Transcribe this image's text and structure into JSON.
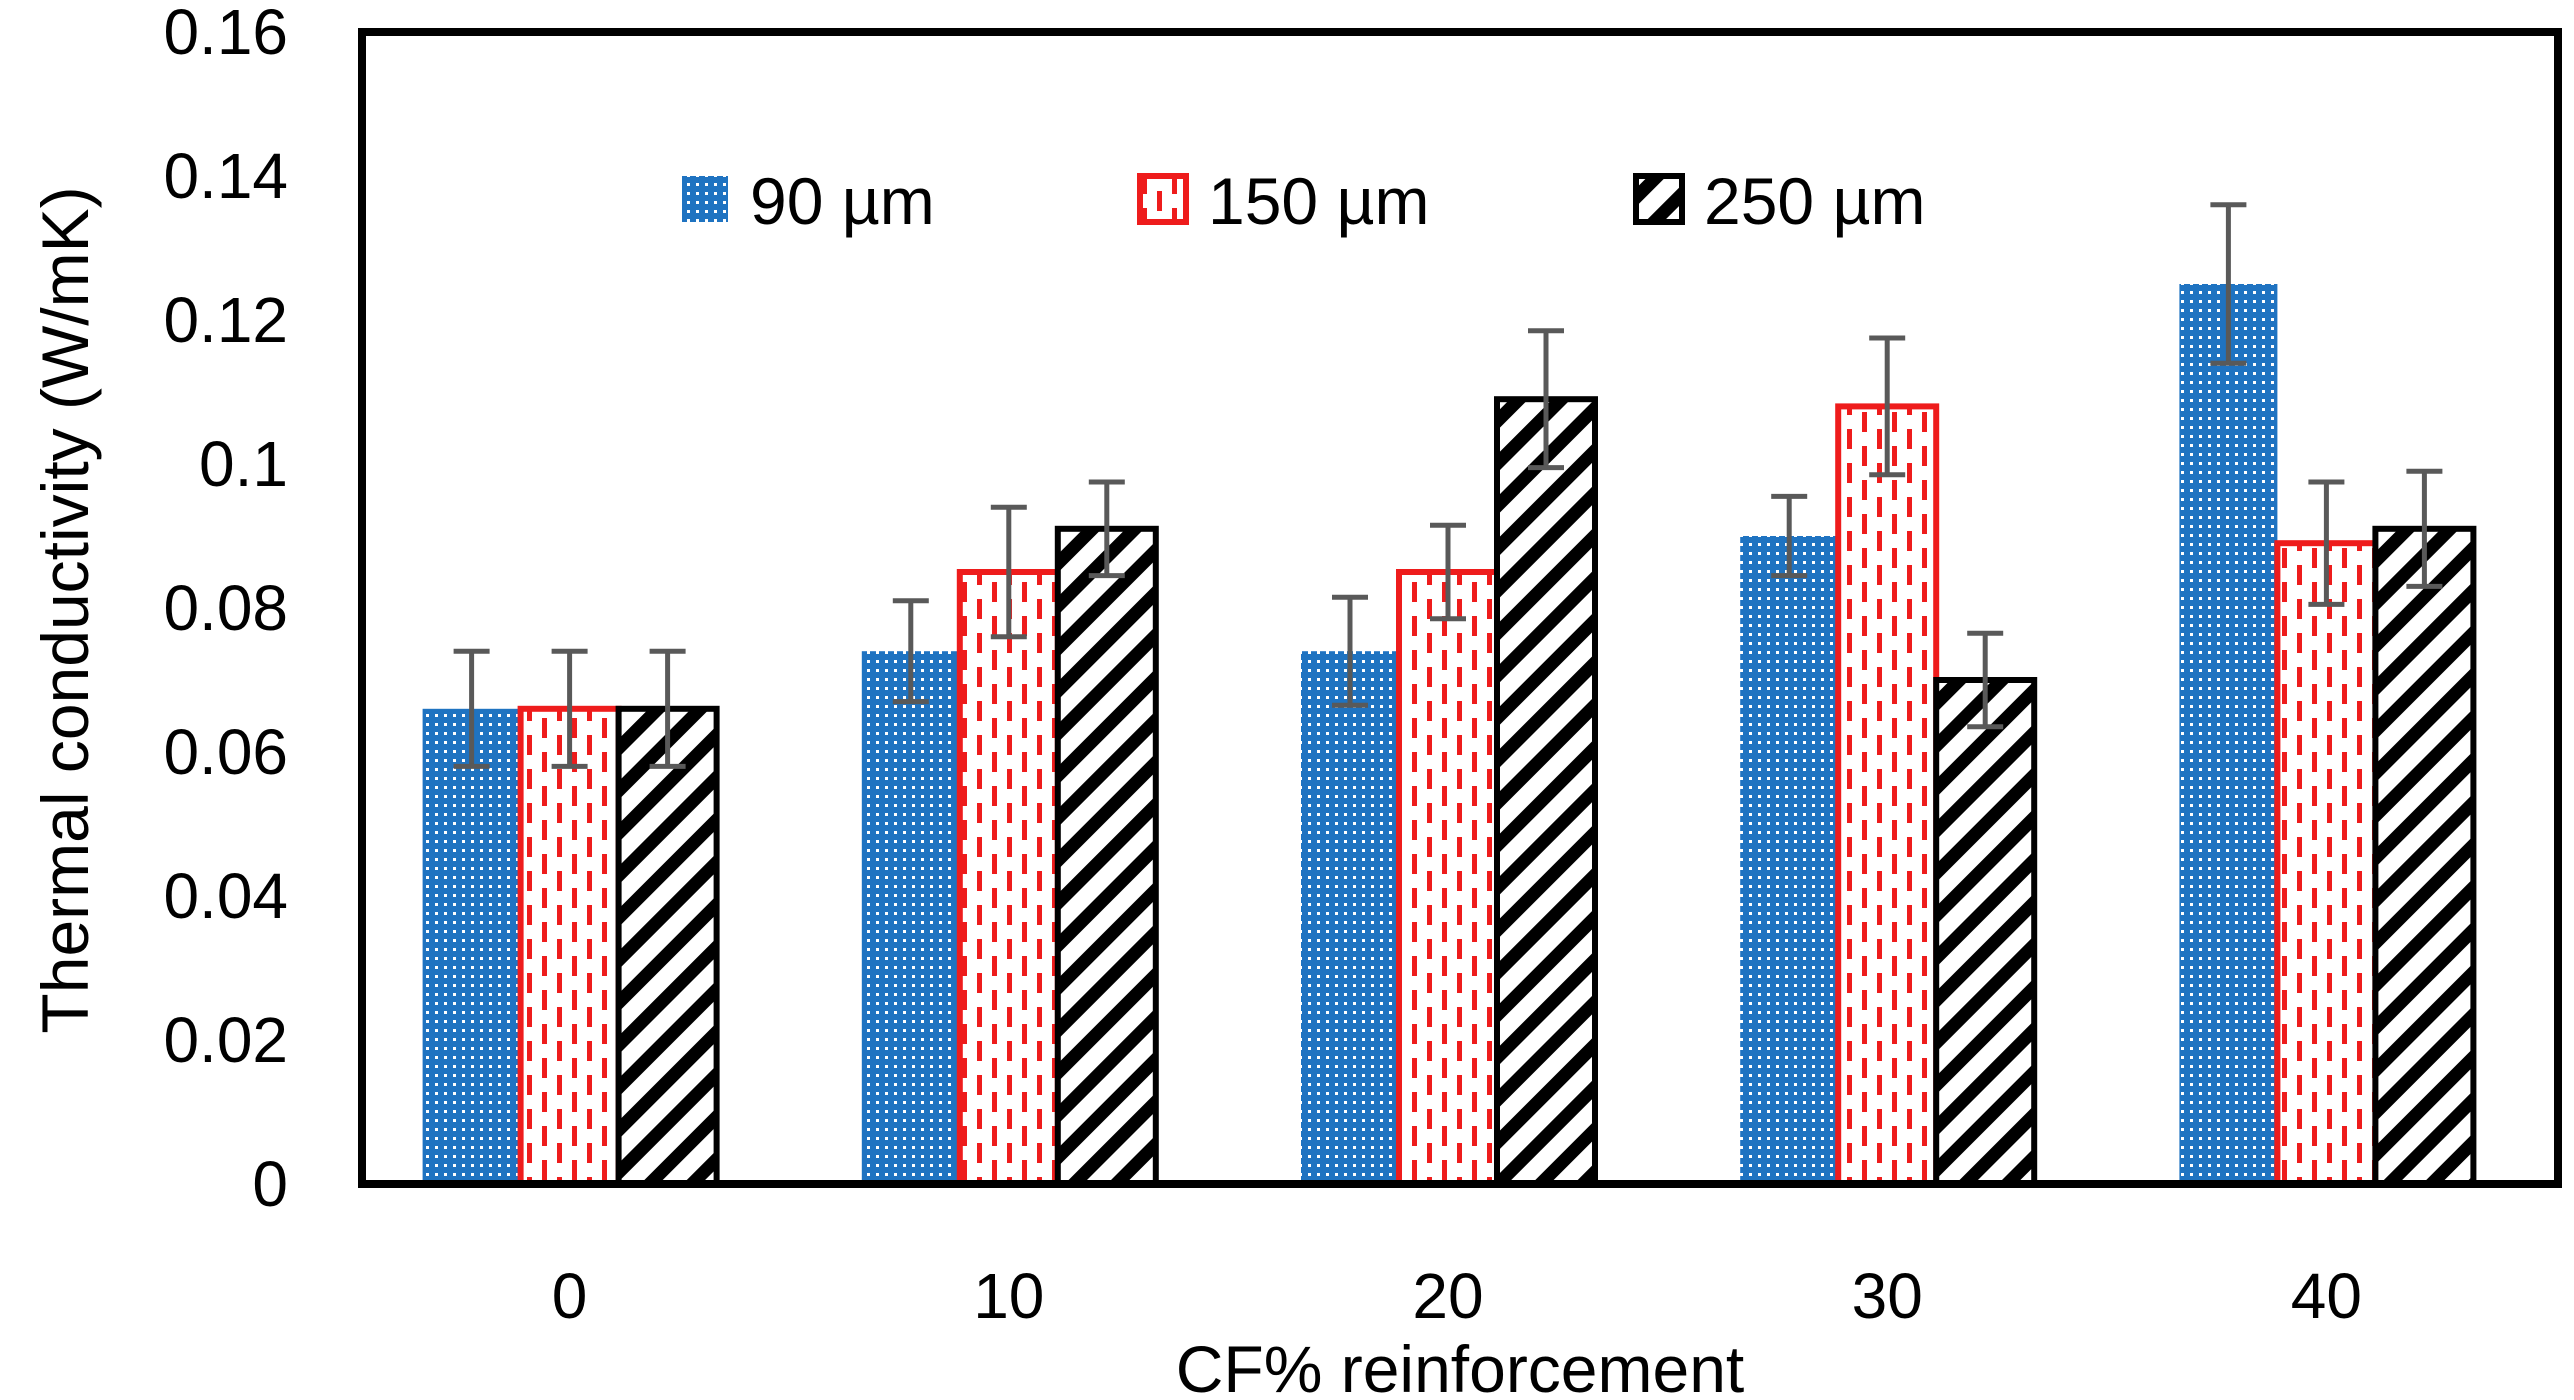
{
  "chart_data": {
    "type": "bar",
    "title": "",
    "xlabel": "CF% reinforcement",
    "ylabel": "Thermal conductivity (W/mK)",
    "ylim": [
      0,
      0.16
    ],
    "yticks": [
      "0",
      "0.02",
      "0.04",
      "0.06",
      "0.08",
      "0.1",
      "0.12",
      "0.14",
      "0.16"
    ],
    "categories": [
      "0",
      "10",
      "20",
      "30",
      "40"
    ],
    "grid": false,
    "legend_position": "top-center",
    "series": [
      {
        "name": "90 µm",
        "color": "#1f73c1",
        "pattern": "dots",
        "values": [
          0.066,
          0.074,
          0.074,
          0.09,
          0.125
        ],
        "errors": [
          0.008,
          0.007,
          0.0075,
          0.0055,
          0.011
        ]
      },
      {
        "name": "150 µm",
        "color": "#ee1c1c",
        "pattern": "dashes",
        "values": [
          0.066,
          0.085,
          0.085,
          0.108,
          0.089
        ],
        "errors": [
          0.008,
          0.009,
          0.0065,
          0.0095,
          0.0085
        ]
      },
      {
        "name": "250 µm",
        "color": "#000000",
        "pattern": "diagonal",
        "values": [
          0.066,
          0.091,
          0.109,
          0.07,
          0.091
        ],
        "errors": [
          0.008,
          0.0065,
          0.0095,
          0.0065,
          0.008
        ]
      }
    ]
  }
}
